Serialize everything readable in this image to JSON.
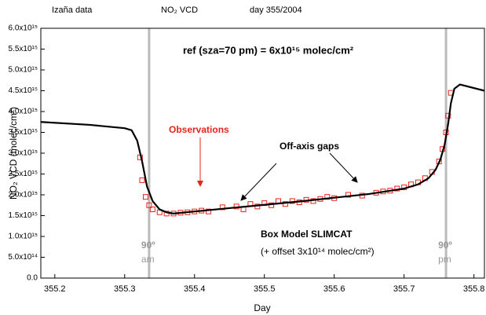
{
  "chart_data": {
    "type": "line",
    "header": [
      "Izaña data",
      "NO₂ VCD",
      "day 355/2004"
    ],
    "title": "ref (sza=70 pm) = 6x10¹⁵ molec/cm²",
    "x_label": "Day",
    "y_label": "NO₂ VCD (molec/cm²)",
    "annotations": {
      "gaps": "Off-axis gaps",
      "offset": "(+ offset 3x10¹⁴ molec/cm²)"
    },
    "reference_lines": [
      {
        "x": 355.335,
        "label": "90º",
        "sublabel": "am"
      },
      {
        "x": 355.76,
        "label": "90º",
        "sublabel": "pm"
      }
    ],
    "xlim": [
      355.18,
      355.815
    ],
    "xticks": [
      355.2,
      355.3,
      355.4,
      355.5,
      355.6,
      355.7,
      355.8
    ],
    "ylim": [
      0,
      6000000000000000.0
    ],
    "yticks": [
      {
        "value": 0,
        "label": "0.0"
      },
      {
        "value": 500000000000000.0,
        "label": "5.0x10¹⁴"
      },
      {
        "value": 1000000000000000.0,
        "label": "1.0x10¹⁵"
      },
      {
        "value": 1500000000000000.0,
        "label": "1.5x10¹⁵"
      },
      {
        "value": 2000000000000000.0,
        "label": "2.0x10¹⁵"
      },
      {
        "value": 2500000000000000.0,
        "label": "2.5x10¹⁵"
      },
      {
        "value": 3000000000000000.0,
        "label": "3.0x10¹⁵"
      },
      {
        "value": 3500000000000000.0,
        "label": "3.5x10¹⁵"
      },
      {
        "value": 4000000000000000.0,
        "label": "4.0x10¹⁵"
      },
      {
        "value": 4500000000000000.0,
        "label": "4.5x10¹⁵"
      },
      {
        "value": 5000000000000000.0,
        "label": "5.0x10¹⁵"
      },
      {
        "value": 5500000000000000.0,
        "label": "5.5x10¹⁵"
      },
      {
        "value": 6000000000000000.0,
        "label": "6.0x10¹⁵"
      }
    ],
    "series": [
      {
        "name": "Box Model SLIMCAT",
        "type": "line",
        "color": "#000000",
        "x": [
          355.18,
          355.25,
          355.3,
          355.31,
          355.318,
          355.325,
          355.332,
          355.34,
          355.35,
          355.36,
          355.37,
          355.4,
          355.45,
          355.5,
          355.55,
          355.6,
          355.65,
          355.7,
          355.72,
          355.735,
          355.745,
          355.752,
          355.758,
          355.763,
          355.767,
          355.772,
          355.78,
          355.815
        ],
        "values": [
          3750000000000000.0,
          3680000000000000.0,
          3600000000000000.0,
          3550000000000000.0,
          3300000000000000.0,
          2800000000000000.0,
          2200000000000000.0,
          1850000000000000.0,
          1650000000000000.0,
          1580000000000000.0,
          1550000000000000.0,
          1600000000000000.0,
          1680000000000000.0,
          1760000000000000.0,
          1840000000000000.0,
          1930000000000000.0,
          2020000000000000.0,
          2150000000000000.0,
          2250000000000000.0,
          2400000000000000.0,
          2600000000000000.0,
          2850000000000000.0,
          3200000000000000.0,
          3700000000000000.0,
          4200000000000000.0,
          4550000000000000.0,
          4650000000000000.0,
          4500000000000000.0
        ]
      },
      {
        "name": "Observations",
        "type": "scatter",
        "color": "#e8231a",
        "x": [
          355.322,
          355.325,
          355.33,
          355.335,
          355.34,
          355.35,
          355.36,
          355.37,
          355.38,
          355.39,
          355.4,
          355.41,
          355.42,
          355.44,
          355.46,
          355.47,
          355.48,
          355.49,
          355.5,
          355.51,
          355.52,
          355.53,
          355.54,
          355.55,
          355.56,
          355.57,
          355.58,
          355.59,
          355.6,
          355.62,
          355.64,
          355.66,
          355.67,
          355.68,
          355.69,
          355.7,
          355.71,
          355.72,
          355.73,
          355.74,
          355.75,
          355.755,
          355.76,
          355.763,
          355.767
        ],
        "values": [
          2900000000000000.0,
          2350000000000000.0,
          1950000000000000.0,
          1750000000000000.0,
          1650000000000000.0,
          1580000000000000.0,
          1550000000000000.0,
          1550000000000000.0,
          1570000000000000.0,
          1580000000000000.0,
          1600000000000000.0,
          1620000000000000.0,
          1600000000000000.0,
          1700000000000000.0,
          1720000000000000.0,
          1650000000000000.0,
          1780000000000000.0,
          1720000000000000.0,
          1800000000000000.0,
          1750000000000000.0,
          1850000000000000.0,
          1780000000000000.0,
          1850000000000000.0,
          1820000000000000.0,
          1880000000000000.0,
          1850000000000000.0,
          1900000000000000.0,
          1950000000000000.0,
          1920000000000000.0,
          2000000000000000.0,
          1980000000000000.0,
          2050000000000000.0,
          2080000000000000.0,
          2100000000000000.0,
          2150000000000000.0,
          2180000000000000.0,
          2250000000000000.0,
          2300000000000000.0,
          2400000000000000.0,
          2550000000000000.0,
          2800000000000000.0,
          3100000000000000.0,
          3500000000000000.0,
          3900000000000000.0,
          4450000000000000.0
        ]
      }
    ]
  }
}
